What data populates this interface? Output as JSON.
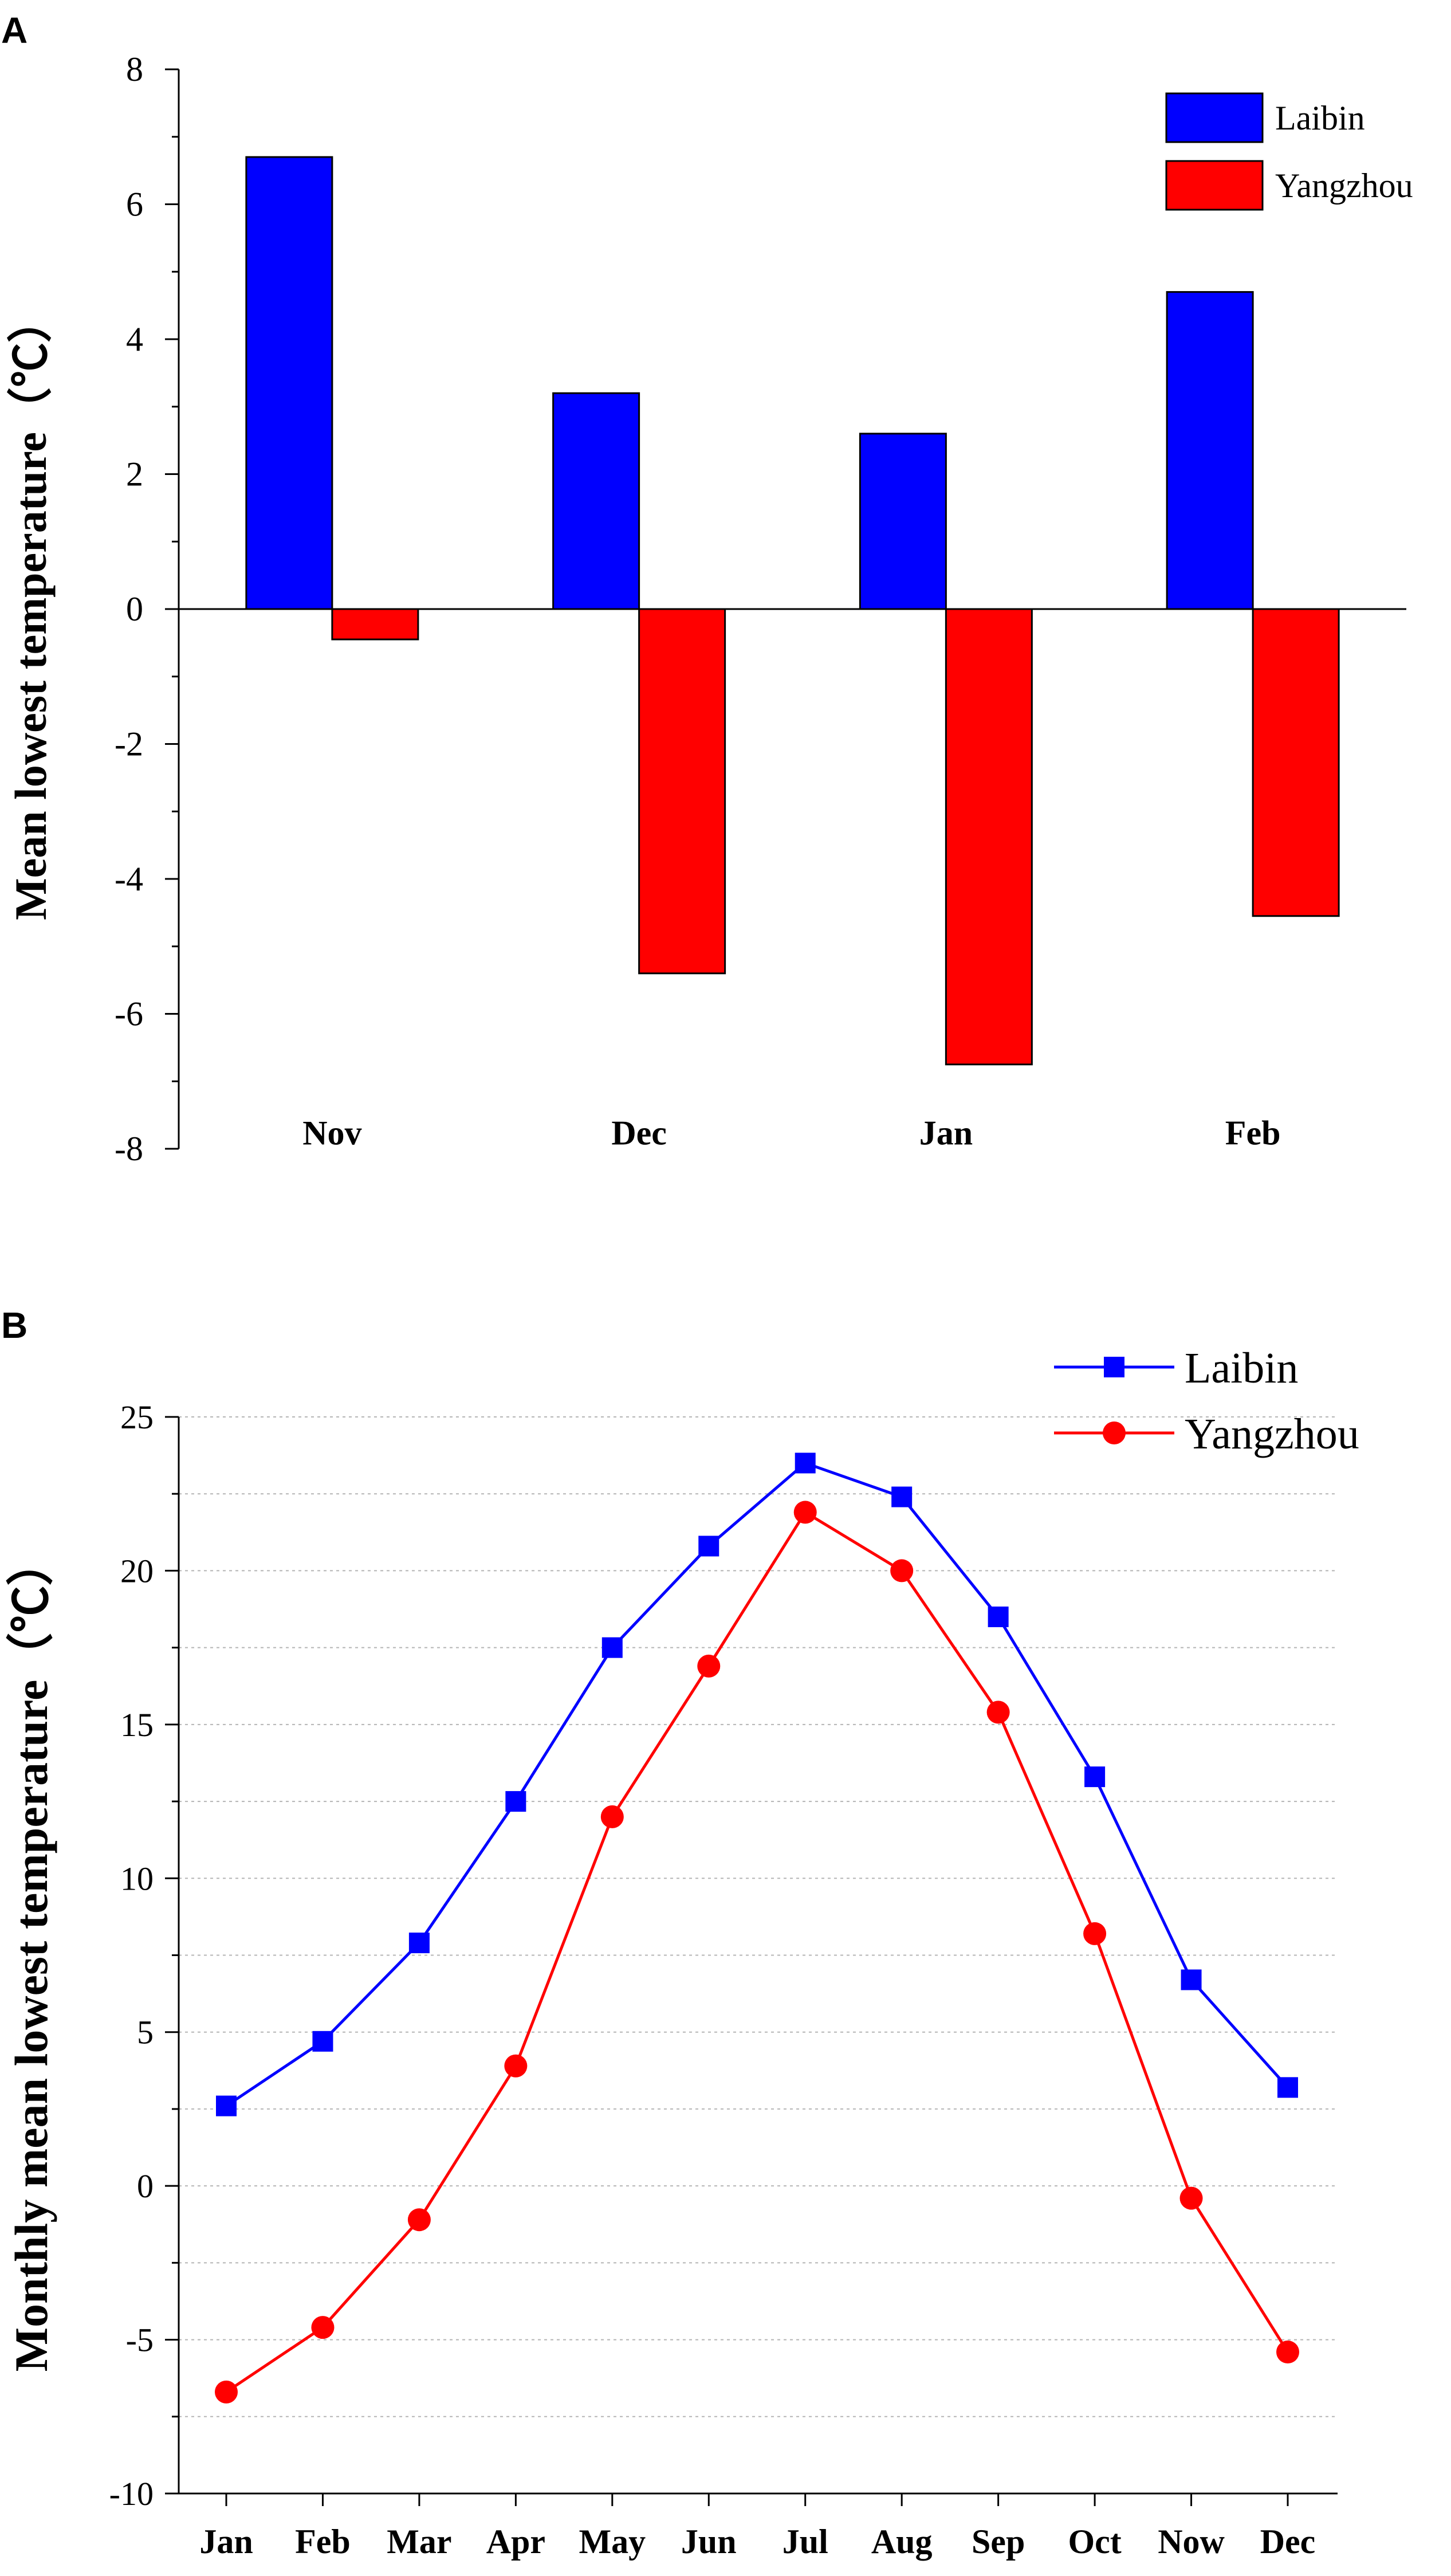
{
  "chart_data": [
    {
      "panel": "A",
      "type": "bar",
      "ylabel": "Mean lowest temperature（℃）",
      "xlabel": "",
      "ylim": [
        -8,
        8
      ],
      "ytick_labels": [
        "8",
        "6",
        "4",
        "2",
        "0",
        "-2",
        "-4",
        "-6",
        "-8"
      ],
      "ytick_values": [
        8,
        6,
        4,
        2,
        0,
        -2,
        -4,
        -6,
        -8
      ],
      "categories": [
        "Nov",
        "Dec",
        "Jan",
        "Feb"
      ],
      "series": [
        {
          "name": "Laibin",
          "color": "#0000FF",
          "values": [
            6.7,
            3.2,
            2.6,
            4.7
          ]
        },
        {
          "name": "Yangzhou",
          "color": "#FF0000",
          "values": [
            -0.45,
            -5.4,
            -6.75,
            -4.55
          ]
        }
      ],
      "legend_position": "top-right"
    },
    {
      "panel": "B",
      "type": "line",
      "ylabel": "Monthly mean lowest temperature（℃）",
      "xlabel": "",
      "ylim": [
        -10,
        25
      ],
      "ytick_labels": [
        "25",
        "20",
        "15",
        "10",
        "5",
        "0",
        "-5",
        "-10"
      ],
      "ytick_values": [
        25,
        20,
        15,
        10,
        5,
        0,
        -5,
        -10
      ],
      "grid": true,
      "categories": [
        "Jan",
        "Feb",
        "Mar",
        "Apr",
        "May",
        "Jun",
        "Jul",
        "Aug",
        "Sep",
        "Oct",
        "Now",
        "Dec"
      ],
      "series": [
        {
          "name": "Laibin",
          "color": "#0000FF",
          "marker": "square",
          "values": [
            2.6,
            4.7,
            7.9,
            12.5,
            17.5,
            20.8,
            23.5,
            22.4,
            18.5,
            13.3,
            6.7,
            3.2
          ]
        },
        {
          "name": "Yangzhou",
          "color": "#FF0000",
          "marker": "circle",
          "values": [
            -6.7,
            -4.6,
            -1.1,
            3.9,
            12.0,
            16.9,
            21.9,
            20.0,
            15.4,
            8.2,
            -0.4,
            -5.4
          ]
        }
      ],
      "legend_position": "top-right"
    }
  ]
}
